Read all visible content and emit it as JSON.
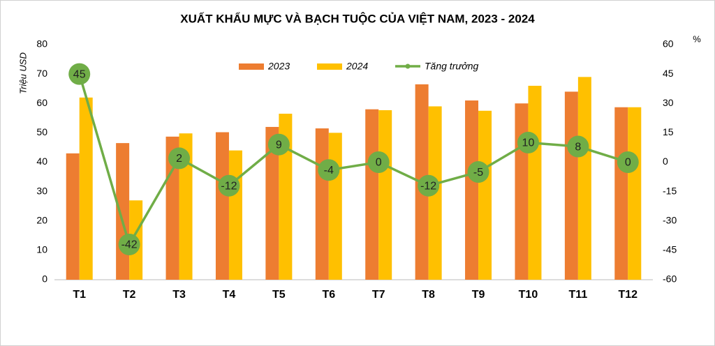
{
  "chart_data": {
    "type": "bar",
    "title": "XUẤT KHẨU MỰC VÀ  BẠCH TUỘC CỦA VIỆT NAM, 2023 - 2024",
    "y_label": "Triệu USD",
    "y2_label": "%",
    "categories": [
      "T1",
      "T2",
      "T3",
      "T4",
      "T5",
      "T6",
      "T7",
      "T8",
      "T9",
      "T10",
      "T11",
      "T12"
    ],
    "series": [
      {
        "name": "2023",
        "type": "bar",
        "color": "#ed7d31",
        "values": [
          43,
          46.5,
          48.7,
          50.2,
          52,
          51.5,
          58,
          66.5,
          61,
          60,
          64,
          58.7
        ]
      },
      {
        "name": "2024",
        "type": "bar",
        "color": "#ffc000",
        "values": [
          62,
          27,
          49.8,
          44,
          56.5,
          50,
          57.7,
          59,
          57.5,
          66,
          69,
          58.7
        ]
      },
      {
        "name": "Tăng trưởng",
        "type": "line",
        "axis": "y2",
        "color": "#70ad47",
        "values": [
          45,
          -42,
          2,
          -12,
          9,
          -4,
          0,
          -12,
          -5,
          10,
          8,
          0
        ]
      }
    ],
    "ylim": [
      0,
      80
    ],
    "yticks": [
      0,
      10,
      20,
      30,
      40,
      50,
      60,
      70,
      80
    ],
    "y2lim": [
      -60,
      60
    ],
    "y2ticks": [
      -60,
      -45,
      -30,
      -15,
      0,
      15,
      30,
      45,
      60
    ],
    "grid": false,
    "legend": "top"
  }
}
